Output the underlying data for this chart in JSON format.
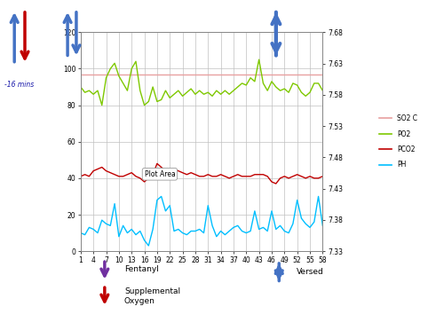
{
  "x_ticks": [
    1,
    4,
    7,
    10,
    13,
    16,
    19,
    22,
    25,
    28,
    31,
    34,
    37,
    40,
    43,
    46,
    49,
    52,
    55,
    58
  ],
  "ylim_left": [
    0,
    120
  ],
  "ylim_right": [
    7.33,
    7.68
  ],
  "so2c": [
    97,
    97,
    97,
    97,
    97,
    97,
    97,
    97,
    97,
    97,
    97,
    97,
    97,
    97,
    97,
    97,
    97,
    97,
    97,
    97,
    97,
    97,
    97,
    97,
    97,
    97,
    97,
    97,
    97,
    97,
    97,
    97,
    97,
    97,
    97,
    97,
    97,
    97,
    97,
    97,
    97,
    97,
    97,
    97,
    97,
    97,
    97,
    97,
    97,
    97,
    97,
    97,
    97,
    97,
    97,
    97,
    97,
    97
  ],
  "po2": [
    90,
    87,
    88,
    86,
    88,
    80,
    95,
    100,
    103,
    96,
    92,
    88,
    100,
    104,
    88,
    80,
    82,
    90,
    82,
    83,
    88,
    84,
    86,
    88,
    85,
    87,
    89,
    86,
    88,
    86,
    87,
    85,
    88,
    86,
    88,
    86,
    88,
    90,
    92,
    91,
    95,
    93,
    105,
    92,
    88,
    93,
    90,
    88,
    89,
    87,
    92,
    91,
    87,
    85,
    87,
    92,
    92,
    88
  ],
  "pco2": [
    41,
    42,
    41,
    44,
    45,
    46,
    44,
    43,
    42,
    41,
    41,
    42,
    43,
    41,
    40,
    38,
    40,
    42,
    48,
    46,
    44,
    44,
    45,
    44,
    43,
    42,
    43,
    42,
    41,
    41,
    42,
    41,
    41,
    42,
    41,
    40,
    41,
    42,
    41,
    41,
    41,
    42,
    42,
    42,
    41,
    38,
    37,
    40,
    41,
    40,
    41,
    42,
    41,
    40,
    41,
    40,
    40,
    41
  ],
  "ph": [
    10,
    9,
    13,
    12,
    10,
    17,
    15,
    14,
    26,
    8,
    14,
    10,
    12,
    9,
    11,
    6,
    3,
    12,
    28,
    30,
    22,
    25,
    11,
    12,
    10,
    9,
    11,
    11,
    12,
    10,
    25,
    14,
    8,
    11,
    9,
    11,
    13,
    14,
    11,
    10,
    11,
    22,
    12,
    13,
    11,
    22,
    12,
    14,
    11,
    10,
    15,
    28,
    18,
    15,
    13,
    16,
    30,
    14
  ],
  "so2c_color": "#e8a0a0",
  "po2_color": "#7ec800",
  "pco2_color": "#c00000",
  "ph_color": "#00bfff",
  "grid_color": "#c0c0c0",
  "plot_bg": "#ffffff",
  "fig_bg": "#ffffff",
  "annotation_text": "Plot Area",
  "legend_labels": [
    "SO2 C",
    "PO2",
    "PCO2",
    "PH"
  ],
  "bottom_labels": [
    "Fentanyl",
    "Supplemental\nOxygen",
    "Versed"
  ],
  "minus16_label": "-16 mins"
}
